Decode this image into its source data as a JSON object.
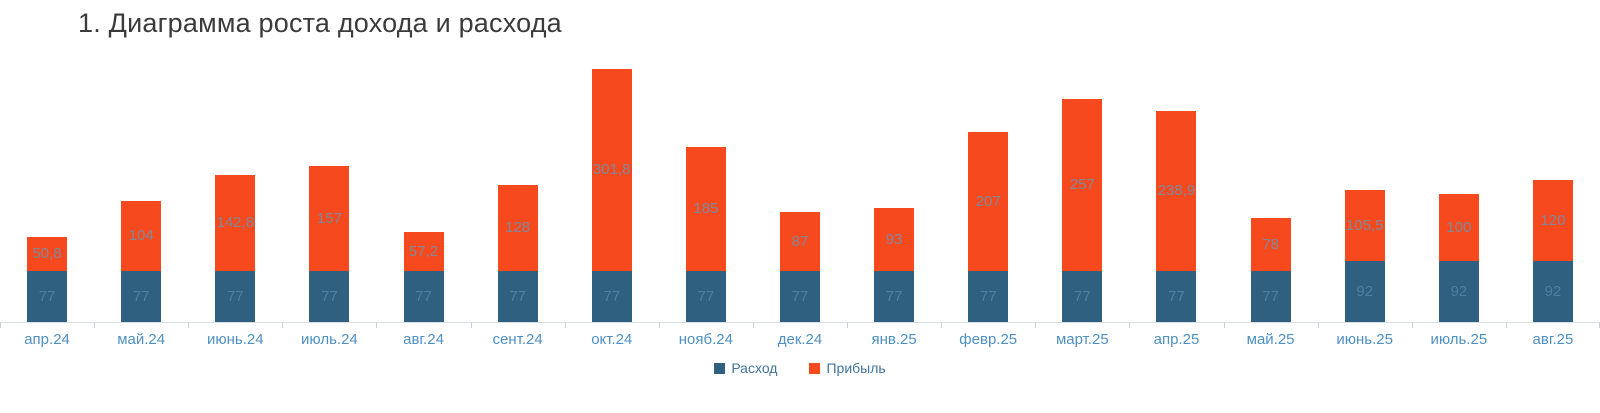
{
  "title": "1. Диаграмма роста дохода и расхода",
  "chart_data": {
    "type": "bar",
    "stacked": true,
    "title": "1. Диаграмма роста дохода и расхода",
    "xlabel": "",
    "ylabel": "",
    "ylim": [
      0,
      380
    ],
    "grid": false,
    "legend_position": "bottom",
    "categories": [
      "апр.24",
      "май.24",
      "июнь.24",
      "июль.24",
      "авг.24",
      "сент.24",
      "окт.24",
      "нояб.24",
      "дек.24",
      "янв.25",
      "февр.25",
      "март.25",
      "апр.25",
      "май.25",
      "июнь.25",
      "июль.25",
      "авг.25"
    ],
    "series": [
      {
        "name": "Расход",
        "color": "#2f607f",
        "label_color": "#4e7ea2",
        "values": [
          77,
          77,
          77,
          77,
          77,
          77,
          77,
          77,
          77,
          77,
          77,
          77,
          77,
          77,
          92,
          92,
          92
        ],
        "labels": [
          "77",
          "77",
          "77",
          "77",
          "77",
          "77",
          "77",
          "77",
          "77",
          "77",
          "77",
          "77",
          "77",
          "77",
          "92",
          "92",
          "92"
        ]
      },
      {
        "name": "Прибыль",
        "color": "#f7491e",
        "label_color": "#7f8899",
        "values": [
          50.8,
          104,
          142.8,
          157,
          57.2,
          128,
          301.8,
          185,
          87,
          93,
          207,
          257,
          238.9,
          78,
          105.5,
          100,
          120
        ],
        "labels": [
          "50,8",
          "104",
          "142,8",
          "157",
          "57,2",
          "128",
          "301,8",
          "185",
          "87",
          "93",
          "207",
          "257",
          "238,9",
          "78",
          "105,5",
          "100",
          "120"
        ]
      }
    ],
    "axis_line_color": "#d9dee3",
    "tick_color": "#c9d2d9",
    "xlabel_color": "#4e90c4"
  }
}
